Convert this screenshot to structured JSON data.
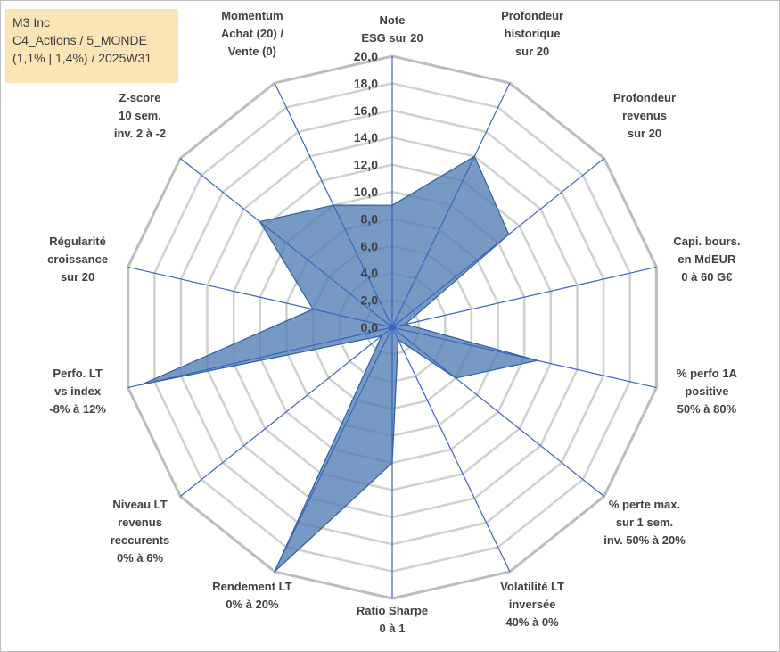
{
  "info_box": {
    "line1": "M3 Inc",
    "line2": "C4_Actions / 5_MONDE",
    "line3": "(1,1% | 1,4%) / 2025W31"
  },
  "chart_data": {
    "type": "radar",
    "axes": [
      [
        "Note",
        "ESG sur 20"
      ],
      [
        "Profondeur",
        "historique",
        "sur 20"
      ],
      [
        "Profondeur",
        "revenus",
        "sur 20"
      ],
      [
        "Capi. bours.",
        "en MdEUR",
        "0 à 60 G€"
      ],
      [
        "% perfo 1A",
        "positive",
        "50% à 80%"
      ],
      [
        "% perte max.",
        "sur 1 sem.",
        "inv. 50% à 20%"
      ],
      [
        "Volatilité LT",
        "inversée",
        "40% à 0%"
      ],
      [
        "Ratio Sharpe",
        "0 à 1"
      ],
      [
        "Rendement LT",
        "0% à 20%"
      ],
      [
        "Niveau LT",
        "revenus",
        "reccurents",
        "0% à 6%"
      ],
      [
        "Perfo. LT",
        "vs index",
        "-8% à 12%"
      ],
      [
        "Régularité",
        "croissance",
        "sur 20"
      ],
      [
        "Z-score",
        "10 sem.",
        "inv. 2 à -2"
      ],
      [
        "Momentum",
        "Achat (20) /",
        "Vente (0)"
      ]
    ],
    "values": [
      9.0,
      14.0,
      11.0,
      1.0,
      11.0,
      6.0,
      1.0,
      10.0,
      20.0,
      1.0,
      19.0,
      6.0,
      12.5,
      10.0
    ],
    "rlim": [
      0,
      20
    ],
    "ticks": [
      "0,0",
      "2,0",
      "4,0",
      "6,0",
      "8,0",
      "10,0",
      "12,0",
      "14,0",
      "16,0",
      "18,0",
      "20,0"
    ],
    "tick_values": [
      0,
      2,
      4,
      6,
      8,
      10,
      12,
      14,
      16,
      18,
      20
    ],
    "grid": true,
    "fill_color": "#4f7db3",
    "line_color": "#2f5f9a",
    "spoke_color": "#3b63c4",
    "grid_color": "#d0d0d0",
    "outer_grid_color": "#bcbcbc"
  }
}
